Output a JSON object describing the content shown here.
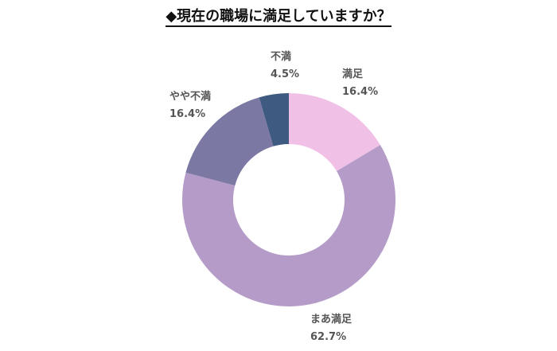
{
  "chart_data": {
    "type": "pie",
    "title": "◆現在の職場に満足していますか？",
    "donut": true,
    "categories": [
      "満足",
      "まあ満足",
      "やや不満",
      "不満"
    ],
    "values": [
      16.4,
      62.7,
      16.4,
      4.5
    ],
    "value_labels": [
      "16.4%",
      "62.7%",
      "16.4%",
      "4.5%"
    ],
    "colors": [
      "#F0C0E6",
      "#B59CC8",
      "#7B78A4",
      "#3F5A80"
    ],
    "start": "12 o'clock, clockwise"
  }
}
